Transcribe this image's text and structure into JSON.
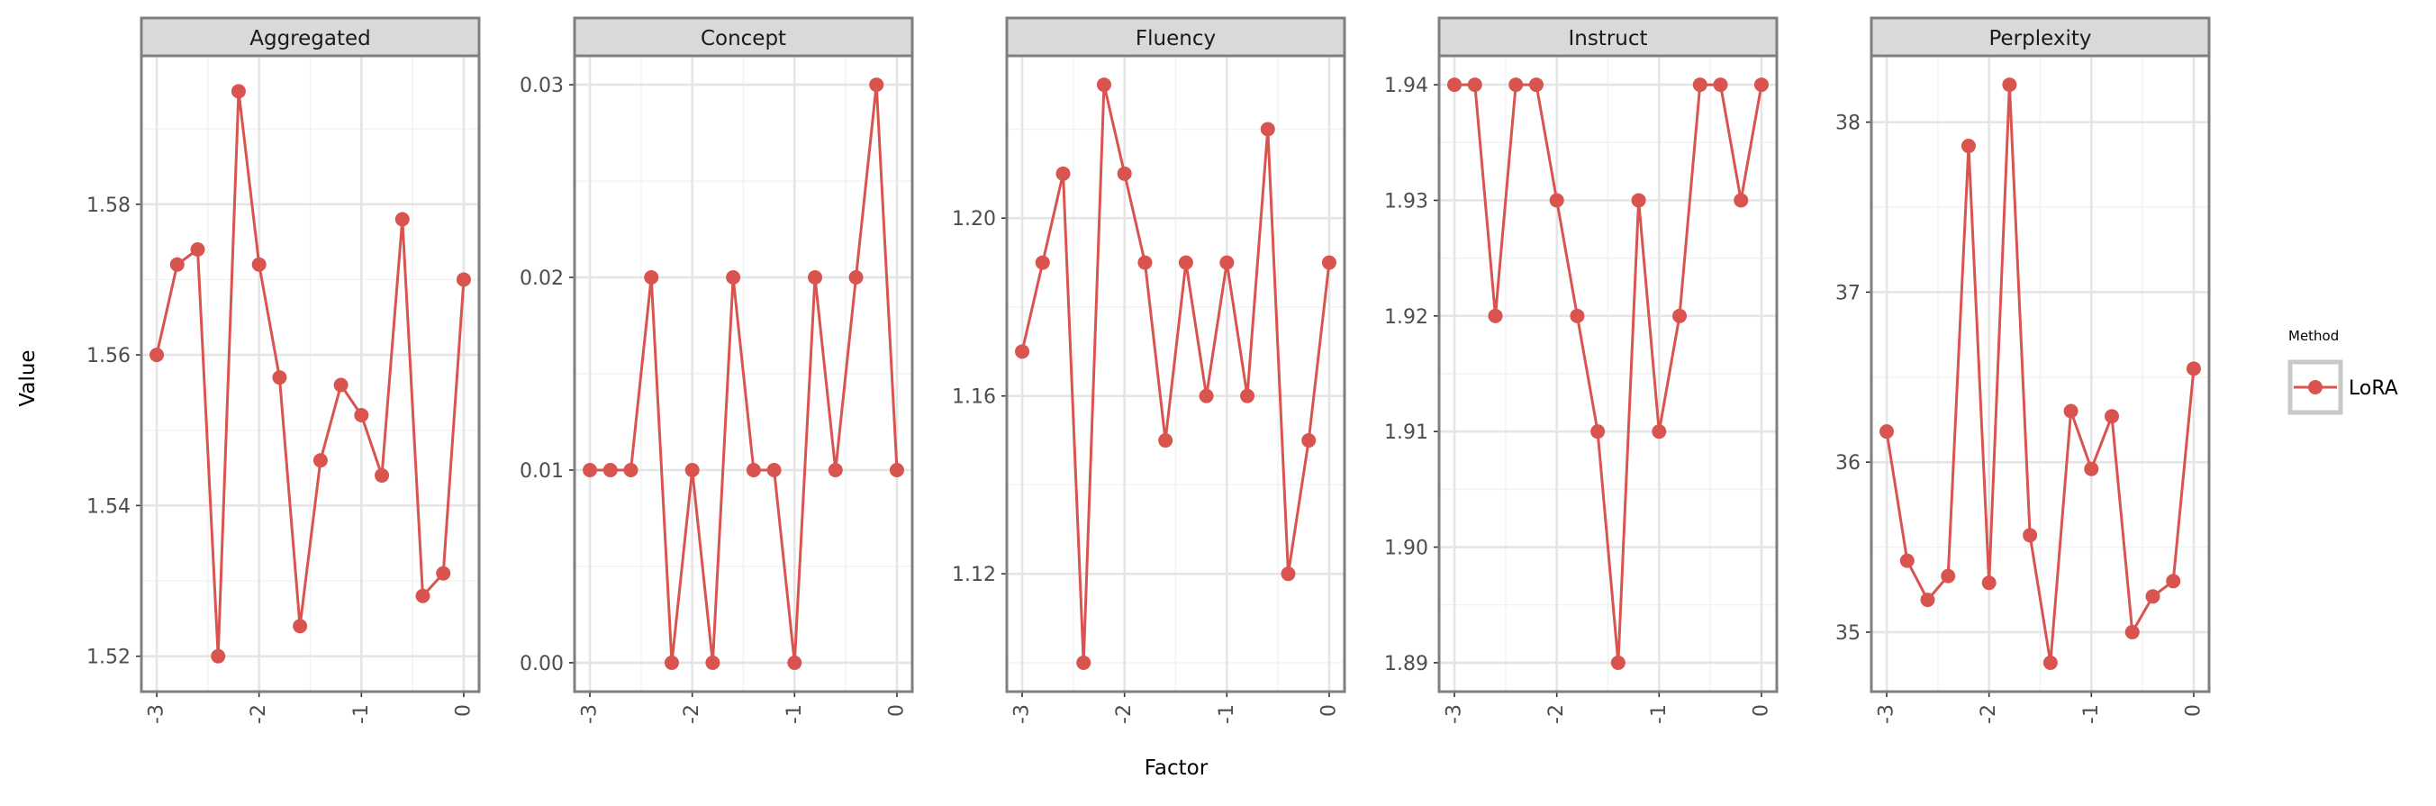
{
  "colors": {
    "series": "#d9534f"
  },
  "chart_data": {
    "type": "line",
    "xlabel": "Factor",
    "ylabel": "Value",
    "x": [
      -3.0,
      -2.8,
      -2.6,
      -2.4,
      -2.2,
      -2.0,
      -1.8,
      -1.6,
      -1.4,
      -1.2,
      -1.0,
      -0.8,
      -0.6,
      -0.4,
      -0.2,
      0.0
    ],
    "xticks": [
      -3,
      -2,
      -1,
      0
    ],
    "xtick_labels": [
      "-3",
      "-2",
      "-1",
      "0"
    ],
    "xlim": [
      -3.15,
      0.15
    ],
    "grid": true,
    "legend": {
      "title": "Method",
      "position": "right",
      "entries": [
        "LoRA"
      ]
    },
    "panels": [
      {
        "title": "Aggregated",
        "values": [
          1.56,
          1.572,
          1.574,
          1.52,
          1.595,
          1.572,
          1.557,
          1.524,
          1.546,
          1.556,
          1.552,
          1.544,
          1.578,
          1.528,
          1.531,
          1.57
        ],
        "ylim": [
          1.5153,
          1.5997
        ],
        "yticks": [
          1.52,
          1.54,
          1.56,
          1.58
        ],
        "ytick_labels": [
          "1.52",
          "1.54",
          "1.56",
          "1.58"
        ]
      },
      {
        "title": "Concept",
        "values": [
          0.01,
          0.01,
          0.01,
          0.02,
          0.0,
          0.01,
          0.0,
          0.02,
          0.01,
          0.01,
          0.0,
          0.02,
          0.01,
          0.02,
          0.03,
          0.01
        ],
        "ylim": [
          -0.0015,
          0.0315
        ],
        "yticks": [
          0.0,
          0.01,
          0.02,
          0.03
        ],
        "ytick_labels": [
          "0.00",
          "0.01",
          "0.02",
          "0.03"
        ]
      },
      {
        "title": "Fluency",
        "values": [
          1.17,
          1.19,
          1.21,
          1.1,
          1.23,
          1.21,
          1.19,
          1.15,
          1.19,
          1.16,
          1.19,
          1.16,
          1.22,
          1.12,
          1.15,
          1.19
        ],
        "ylim": [
          1.0935,
          1.2365
        ],
        "yticks": [
          1.12,
          1.16,
          1.2
        ],
        "ytick_labels": [
          "1.12",
          "1.16",
          "1.20"
        ]
      },
      {
        "title": "Instruct",
        "values": [
          1.94,
          1.94,
          1.92,
          1.94,
          1.94,
          1.93,
          1.92,
          1.91,
          1.89,
          1.93,
          1.91,
          1.92,
          1.94,
          1.94,
          1.93,
          1.94
        ],
        "ylim": [
          1.8875,
          1.9425
        ],
        "yticks": [
          1.89,
          1.9,
          1.91,
          1.92,
          1.93,
          1.94
        ],
        "ytick_labels": [
          "1.89",
          "1.90",
          "1.91",
          "1.92",
          "1.93",
          "1.94"
        ]
      },
      {
        "title": "Perplexity",
        "values": [
          36.18,
          35.42,
          35.19,
          35.33,
          37.86,
          35.29,
          38.22,
          35.57,
          34.82,
          36.3,
          35.96,
          36.27,
          35.0,
          35.21,
          35.3,
          36.55
        ],
        "ylim": [
          34.65,
          38.39
        ],
        "yticks": [
          35,
          36,
          37,
          38
        ],
        "ytick_labels": [
          "35",
          "36",
          "37",
          "38"
        ]
      }
    ]
  }
}
